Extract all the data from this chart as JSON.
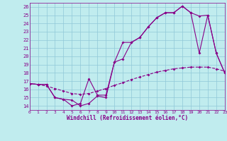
{
  "xlabel": "Windchill (Refroidissement éolien,°C)",
  "bg_color": "#c0ecee",
  "grid_color": "#90c8d8",
  "line_color": "#880088",
  "line1_x": [
    0,
    1,
    2,
    3,
    4,
    5,
    6,
    7,
    8,
    9,
    10,
    11,
    12,
    13,
    14,
    15,
    16,
    17,
    18,
    19,
    20,
    21,
    22,
    23
  ],
  "line1_y": [
    16.7,
    16.6,
    16.6,
    15.0,
    14.8,
    14.0,
    14.3,
    17.3,
    15.3,
    15.3,
    19.3,
    21.7,
    21.7,
    22.3,
    23.6,
    24.7,
    25.3,
    25.3,
    26.1,
    25.3,
    20.4,
    25.0,
    20.4,
    18.0
  ],
  "line2_x": [
    0,
    1,
    2,
    3,
    4,
    5,
    6,
    7,
    8,
    9,
    10,
    11,
    12,
    13,
    14,
    15,
    16,
    17,
    18,
    19,
    20,
    21,
    22,
    23
  ],
  "line2_y": [
    16.7,
    16.6,
    16.6,
    15.0,
    14.8,
    14.7,
    14.0,
    14.3,
    15.2,
    15.0,
    19.3,
    19.7,
    21.7,
    22.3,
    23.6,
    24.7,
    25.3,
    25.3,
    26.1,
    25.3,
    24.9,
    25.0,
    20.4,
    18.0
  ],
  "line3_x": [
    0,
    1,
    2,
    3,
    4,
    5,
    6,
    7,
    8,
    9,
    10,
    11,
    12,
    13,
    14,
    15,
    16,
    17,
    18,
    19,
    20,
    21,
    22,
    23
  ],
  "line3_y": [
    16.7,
    16.6,
    16.4,
    16.1,
    15.8,
    15.5,
    15.4,
    15.5,
    15.8,
    16.1,
    16.5,
    16.8,
    17.2,
    17.5,
    17.8,
    18.1,
    18.3,
    18.5,
    18.6,
    18.7,
    18.7,
    18.7,
    18.5,
    18.2
  ],
  "xlim": [
    0,
    23
  ],
  "ylim": [
    13.5,
    26.5
  ],
  "xticks": [
    0,
    1,
    2,
    3,
    4,
    5,
    6,
    7,
    8,
    9,
    10,
    11,
    12,
    13,
    14,
    15,
    16,
    17,
    18,
    19,
    20,
    21,
    22,
    23
  ],
  "yticks": [
    14,
    15,
    16,
    17,
    18,
    19,
    20,
    21,
    22,
    23,
    24,
    25,
    26
  ],
  "markersize": 2.0,
  "linewidth": 0.8
}
